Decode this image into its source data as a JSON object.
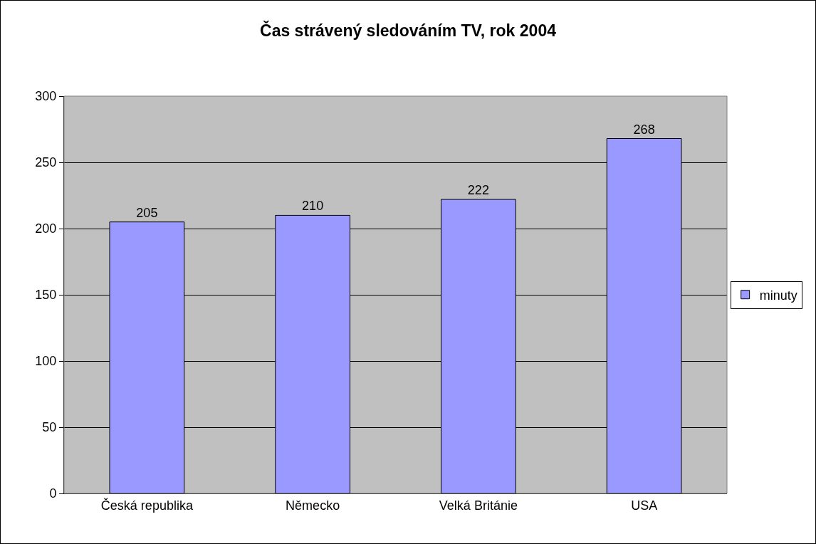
{
  "chart_data": {
    "type": "bar",
    "title": "Čas strávený sledováním TV, rok 2004",
    "categories": [
      "Česká republika",
      "Německo",
      "Velká Británie",
      "USA"
    ],
    "series": [
      {
        "name": "minuty",
        "color": "#9999ff",
        "values": [
          205,
          210,
          222,
          268
        ]
      }
    ],
    "ylim": [
      0,
      300
    ],
    "yticks": [
      0,
      50,
      100,
      150,
      200,
      250,
      300
    ],
    "grid": "y",
    "legend": "right",
    "data_labels": true
  }
}
